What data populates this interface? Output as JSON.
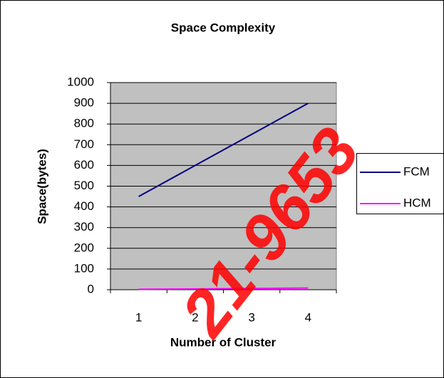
{
  "chart_data": {
    "type": "line",
    "title": "Space Complexity",
    "x_label": "Number of Cluster",
    "y_label": "Space(bytes)",
    "categories": [
      "1",
      "2",
      "3",
      "4"
    ],
    "series": [
      {
        "name": "FCM",
        "color": "#000080",
        "values": [
          450,
          600,
          750,
          900
        ]
      },
      {
        "name": "HCM",
        "color": "#ff00ff",
        "values": [
          2,
          4,
          6,
          8
        ]
      }
    ],
    "ylim": [
      0,
      1000
    ],
    "yticks": [
      0,
      100,
      200,
      300,
      400,
      500,
      600,
      700,
      800,
      900,
      1000
    ],
    "grid": true,
    "legend": "right",
    "plot_background": "#c0c0c0",
    "watermark": "21-9653"
  }
}
